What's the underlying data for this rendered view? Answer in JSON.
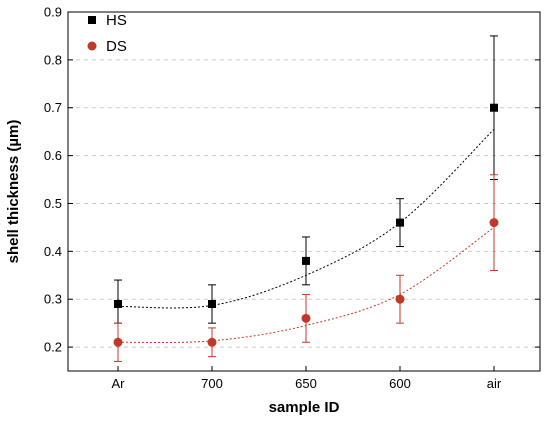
{
  "chart_data": {
    "type": "scatter",
    "title": "",
    "xlabel": "sample ID",
    "ylabel": "shell thickness (µm)",
    "categories": [
      "Ar",
      "700",
      "650",
      "600",
      "air"
    ],
    "ylim": [
      0.15,
      0.9
    ],
    "yticks": [
      0.2,
      0.3,
      0.4,
      0.5,
      0.6,
      0.7,
      0.8,
      0.9
    ],
    "ytick_labels": [
      "0.2",
      "0.3",
      "0.4",
      "0.5",
      "0.6",
      "0.7",
      "0.8",
      "0.9"
    ],
    "grid": "horizontal dashed",
    "legend_position": "top-left",
    "series": [
      {
        "name": "HS",
        "marker": "square",
        "color": "#000000",
        "values": [
          0.29,
          0.29,
          0.38,
          0.46,
          0.7
        ],
        "err_low": [
          0.25,
          0.25,
          0.33,
          0.41,
          0.55
        ],
        "err_high": [
          0.34,
          0.33,
          0.43,
          0.51,
          0.85
        ],
        "fit_curve": [
          0.285,
          0.287,
          0.35,
          0.46,
          0.655
        ],
        "fit_color": "#000000"
      },
      {
        "name": "DS",
        "marker": "circle",
        "color": "#c0392b",
        "values": [
          0.21,
          0.21,
          0.26,
          0.3,
          0.46
        ],
        "err_low": [
          0.17,
          0.18,
          0.21,
          0.25,
          0.36
        ],
        "err_high": [
          0.25,
          0.24,
          0.31,
          0.35,
          0.56
        ],
        "fit_curve": [
          0.21,
          0.213,
          0.245,
          0.31,
          0.45
        ],
        "fit_color": "#c0392b"
      }
    ]
  }
}
